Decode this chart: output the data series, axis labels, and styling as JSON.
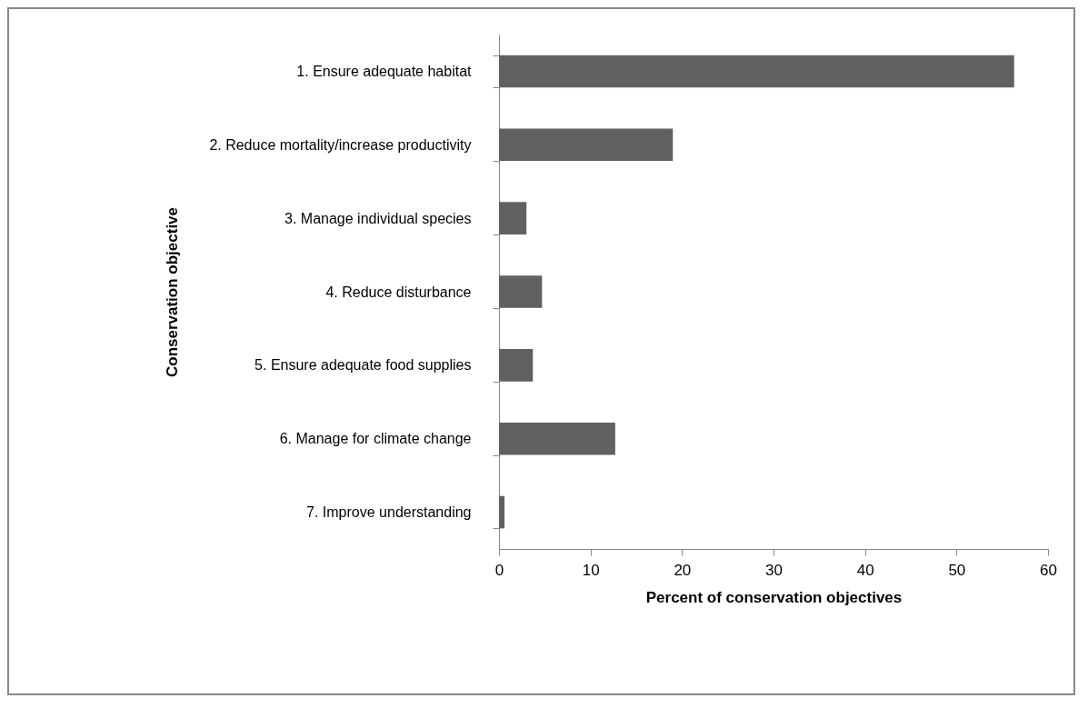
{
  "chart_data": {
    "type": "bar",
    "orientation": "horizontal",
    "xlabel": "Percent of conservation objectives",
    "ylabel": "Conservation objective",
    "categories": [
      "1. Ensure adequate habitat",
      "2. Reduce mortality/increase productivity",
      "3. Manage individual species",
      "4. Reduce disturbance",
      "5. Ensure adequate food supplies",
      "6. Manage for climate change",
      "7. Improve understanding"
    ],
    "values": [
      56.3,
      19.0,
      3.0,
      4.7,
      3.7,
      12.7,
      0.6
    ],
    "color": "#606060",
    "xlim": [
      0,
      60
    ],
    "xticks": [
      0,
      10,
      20,
      30,
      40,
      50,
      60
    ],
    "grid": false
  }
}
